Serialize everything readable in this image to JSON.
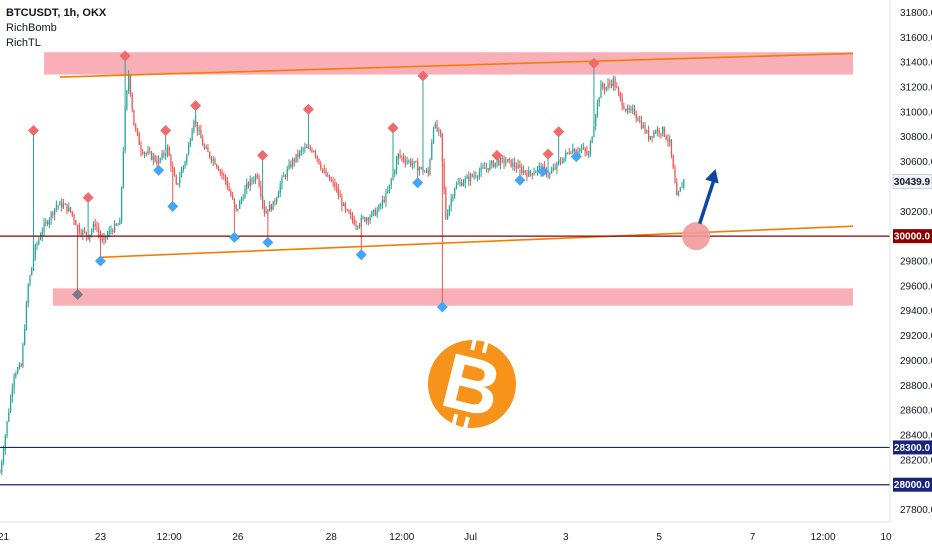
{
  "legend": {
    "symbol": "BTCUSDT, 1h, OKX",
    "indicator_1": "RichBomb",
    "indicator_2": "RichTL"
  },
  "colors": {
    "up": "#26a69a",
    "down": "#ef5350",
    "zone": "#f7a1ab",
    "trend": "#f57c00",
    "level_red": "#8b0000",
    "level_blue": "#1a237e",
    "diamond_top": "#ef6a6a",
    "diamond_bottom": "#42a5f5",
    "diamond_gray": "#787b86",
    "arrow": "#0d47a1",
    "circle": "#ef9a9a",
    "bitcoin": "#f7931a",
    "axis_text": "#131722",
    "price_tag": "#f0f3fa"
  },
  "chart_data": {
    "type": "candlestick",
    "title": "BTCUSDT, 1h, OKX",
    "xlabel": "",
    "ylabel": "",
    "ylim": [
      27700,
      31900
    ],
    "x_index_range": [
      0,
      505
    ],
    "y_ticks": [
      31800,
      31600,
      31400,
      31200,
      31000,
      30800,
      30600,
      30200,
      30000,
      29800,
      29600,
      29400,
      29200,
      29000,
      28800,
      28600,
      28400,
      28200,
      28000,
      27800
    ],
    "x_ticks": [
      {
        "label": "21",
        "i": 2
      },
      {
        "label": "23",
        "i": 57
      },
      {
        "label": "12:00",
        "i": 96
      },
      {
        "label": "26",
        "i": 135
      },
      {
        "label": "28",
        "i": 188
      },
      {
        "label": "12:00",
        "i": 228
      },
      {
        "label": "Jul",
        "i": 267
      },
      {
        "label": "3",
        "i": 321
      },
      {
        "label": "5",
        "i": 374
      },
      {
        "label": "7",
        "i": 427
      },
      {
        "label": "12:00",
        "i": 467
      },
      {
        "label": "10",
        "i": 506
      }
    ],
    "current_price": "30439.9",
    "current_price_value": 30439.9,
    "levels": [
      {
        "price": 30000,
        "label": "30000.0",
        "color": "level_red"
      },
      {
        "price": 28300,
        "label": "28300.0",
        "color": "level_blue"
      },
      {
        "price": 28000,
        "label": "28000.0",
        "color": "level_blue"
      }
    ],
    "zones": [
      {
        "name": "resistance-zone",
        "i0": 25,
        "i1": 484,
        "top": 31480,
        "bottom": 31300
      },
      {
        "name": "support-zone",
        "i0": 30,
        "i1": 484,
        "top": 29580,
        "bottom": 29440
      }
    ],
    "trendlines": [
      {
        "name": "upper-trendline",
        "i0": 34,
        "p0": 31280,
        "i1": 484,
        "p1": 31470
      },
      {
        "name": "lower-trendline",
        "i0": 57,
        "p0": 29830,
        "i1": 484,
        "p1": 30080
      }
    ],
    "price_path": [
      {
        "i": 0,
        "p": 28100
      },
      {
        "i": 4,
        "p": 28500
      },
      {
        "i": 8,
        "p": 28900
      },
      {
        "i": 12,
        "p": 28950
      },
      {
        "i": 16,
        "p": 29600
      },
      {
        "i": 20,
        "p": 29900
      },
      {
        "i": 24,
        "p": 30050
      },
      {
        "i": 28,
        "p": 30150
      },
      {
        "i": 32,
        "p": 30250
      },
      {
        "i": 36,
        "p": 30250
      },
      {
        "i": 40,
        "p": 30200
      },
      {
        "i": 45,
        "p": 30050
      },
      {
        "i": 50,
        "p": 30000
      },
      {
        "i": 54,
        "p": 30100
      },
      {
        "i": 58,
        "p": 29950
      },
      {
        "i": 63,
        "p": 30050
      },
      {
        "i": 68,
        "p": 30100
      },
      {
        "i": 71,
        "p": 31000
      },
      {
        "i": 73,
        "p": 31300
      },
      {
        "i": 76,
        "p": 30900
      },
      {
        "i": 80,
        "p": 30700
      },
      {
        "i": 85,
        "p": 30650
      },
      {
        "i": 90,
        "p": 30600
      },
      {
        "i": 95,
        "p": 30700
      },
      {
        "i": 100,
        "p": 30400
      },
      {
        "i": 106,
        "p": 30650
      },
      {
        "i": 110,
        "p": 30950
      },
      {
        "i": 116,
        "p": 30700
      },
      {
        "i": 122,
        "p": 30600
      },
      {
        "i": 128,
        "p": 30450
      },
      {
        "i": 134,
        "p": 30200
      },
      {
        "i": 140,
        "p": 30400
      },
      {
        "i": 146,
        "p": 30500
      },
      {
        "i": 150,
        "p": 30200
      },
      {
        "i": 155,
        "p": 30250
      },
      {
        "i": 160,
        "p": 30450
      },
      {
        "i": 166,
        "p": 30600
      },
      {
        "i": 172,
        "p": 30700
      },
      {
        "i": 178,
        "p": 30700
      },
      {
        "i": 184,
        "p": 30500
      },
      {
        "i": 190,
        "p": 30400
      },
      {
        "i": 196,
        "p": 30200
      },
      {
        "i": 202,
        "p": 30100
      },
      {
        "i": 208,
        "p": 30150
      },
      {
        "i": 214,
        "p": 30200
      },
      {
        "i": 220,
        "p": 30350
      },
      {
        "i": 226,
        "p": 30650
      },
      {
        "i": 232,
        "p": 30600
      },
      {
        "i": 238,
        "p": 30550
      },
      {
        "i": 243,
        "p": 30500
      },
      {
        "i": 246,
        "p": 30900
      },
      {
        "i": 250,
        "p": 30800
      },
      {
        "i": 253,
        "p": 30150
      },
      {
        "i": 258,
        "p": 30400
      },
      {
        "i": 264,
        "p": 30450
      },
      {
        "i": 270,
        "p": 30500
      },
      {
        "i": 276,
        "p": 30550
      },
      {
        "i": 282,
        "p": 30600
      },
      {
        "i": 288,
        "p": 30600
      },
      {
        "i": 294,
        "p": 30550
      },
      {
        "i": 300,
        "p": 30500
      },
      {
        "i": 306,
        "p": 30550
      },
      {
        "i": 312,
        "p": 30500
      },
      {
        "i": 318,
        "p": 30600
      },
      {
        "i": 324,
        "p": 30700
      },
      {
        "i": 330,
        "p": 30700
      },
      {
        "i": 334,
        "p": 30650
      },
      {
        "i": 338,
        "p": 31000
      },
      {
        "i": 341,
        "p": 31200
      },
      {
        "i": 344,
        "p": 31200
      },
      {
        "i": 348,
        "p": 31250
      },
      {
        "i": 352,
        "p": 31100
      },
      {
        "i": 356,
        "p": 31000
      },
      {
        "i": 360,
        "p": 31000
      },
      {
        "i": 364,
        "p": 30900
      },
      {
        "i": 368,
        "p": 30800
      },
      {
        "i": 372,
        "p": 30850
      },
      {
        "i": 376,
        "p": 30850
      },
      {
        "i": 380,
        "p": 30750
      },
      {
        "i": 384,
        "p": 30300
      },
      {
        "i": 388,
        "p": 30450
      }
    ],
    "markers": [
      {
        "type": "top",
        "i": 19,
        "p": 30850
      },
      {
        "type": "top",
        "i": 71,
        "p": 31450
      },
      {
        "type": "top",
        "i": 94,
        "p": 30850
      },
      {
        "type": "top",
        "i": 111,
        "p": 31050
      },
      {
        "type": "top",
        "i": 149,
        "p": 30650
      },
      {
        "type": "top",
        "i": 175,
        "p": 31020
      },
      {
        "type": "top",
        "i": 223,
        "p": 30870
      },
      {
        "type": "top",
        "i": 240,
        "p": 31290
      },
      {
        "type": "top",
        "i": 282,
        "p": 30650
      },
      {
        "type": "top",
        "i": 311,
        "p": 30660
      },
      {
        "type": "top",
        "i": 317,
        "p": 30840
      },
      {
        "type": "top",
        "i": 337,
        "p": 31390
      },
      {
        "type": "top",
        "i": 50,
        "p": 30310
      },
      {
        "type": "bottom",
        "i": 90,
        "p": 30530
      },
      {
        "type": "bottom",
        "i": 98,
        "p": 30240
      },
      {
        "type": "bottom",
        "i": 133,
        "p": 29990
      },
      {
        "type": "bottom",
        "i": 152,
        "p": 29950
      },
      {
        "type": "bottom",
        "i": 205,
        "p": 29850
      },
      {
        "type": "bottom",
        "i": 237,
        "p": 30430
      },
      {
        "type": "bottom",
        "i": 251,
        "p": 29430
      },
      {
        "type": "bottom",
        "i": 295,
        "p": 30450
      },
      {
        "type": "bottom",
        "i": 308,
        "p": 30520
      },
      {
        "type": "bottom",
        "i": 327,
        "p": 30640
      },
      {
        "type": "bottom",
        "i": 57,
        "p": 29800
      },
      {
        "type": "gray",
        "i": 44,
        "p": 29530
      }
    ],
    "signal_circle": {
      "i": 395,
      "p": 30000
    },
    "arrow": {
      "i0": 397,
      "p0": 30100,
      "i1": 406,
      "p1": 30540
    }
  }
}
